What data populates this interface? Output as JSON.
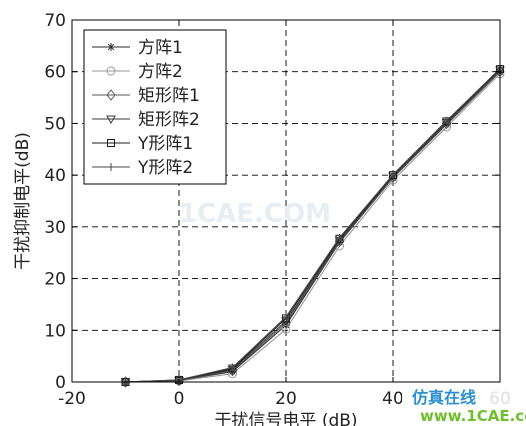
{
  "chart_data": {
    "type": "line",
    "xlabel": "干扰信号电平 (dB)",
    "ylabel": "干扰抑制电平(dB)",
    "xlim": [
      -20,
      60
    ],
    "ylim": [
      0,
      70
    ],
    "xticks": [
      "-20",
      "0",
      "20",
      "40",
      "60"
    ],
    "yticks": [
      "0",
      "10",
      "20",
      "30",
      "40",
      "50",
      "60",
      "70"
    ],
    "grid": true,
    "legend_position": "top-left",
    "x": [
      -10,
      0,
      10,
      20,
      30,
      40,
      50,
      60
    ],
    "series": [
      {
        "name": "方阵1",
        "marker": "asterisk",
        "color": "#2a2a2a",
        "values": [
          0,
          0.3,
          2.0,
          11.0,
          27.0,
          39.5,
          49.8,
          60.0
        ]
      },
      {
        "name": "方阵2",
        "marker": "circle",
        "color": "#9a9a9a",
        "values": [
          0,
          0.2,
          1.6,
          10.2,
          26.3,
          39.0,
          49.3,
          59.6
        ]
      },
      {
        "name": "矩形阵1",
        "marker": "diamond",
        "color": "#5a5a5a",
        "values": [
          0,
          0.3,
          2.2,
          11.4,
          27.2,
          39.6,
          50.0,
          60.1
        ]
      },
      {
        "name": "矩形阵2",
        "marker": "triangle",
        "color": "#3a3a3a",
        "values": [
          0,
          0.3,
          2.4,
          11.8,
          27.4,
          39.8,
          50.2,
          60.3
        ]
      },
      {
        "name": "Y形阵1",
        "marker": "square",
        "color": "#1a1a1a",
        "values": [
          0,
          0.4,
          2.6,
          12.3,
          27.7,
          40.0,
          50.4,
          60.5
        ]
      },
      {
        "name": "Y形阵2",
        "marker": "plus",
        "color": "#4a4a4a",
        "values": [
          0,
          0.4,
          2.8,
          12.6,
          27.9,
          40.1,
          50.5,
          60.6
        ]
      }
    ]
  },
  "watermark": {
    "center_text": "1CAE.COM",
    "logo_cn": "仿真在线",
    "logo_site": "www.1CAE.com"
  }
}
